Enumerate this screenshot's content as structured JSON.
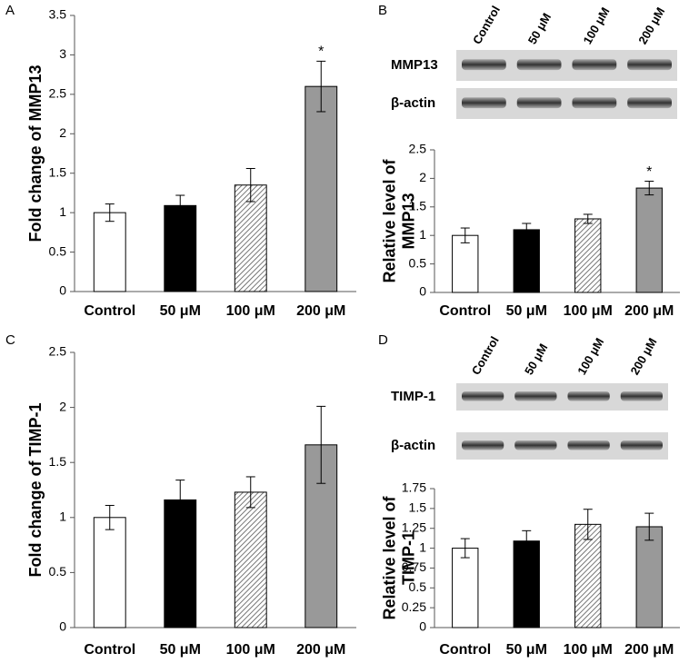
{
  "chart_data": [
    {
      "type": "bar",
      "panel": "A",
      "ylabel": [
        "Fold change of MMP13"
      ],
      "categories": [
        "Control",
        "50 μM",
        "100 μM",
        "200 μM"
      ],
      "values": [
        1,
        1.09,
        1.35,
        2.6
      ],
      "errors": [
        0.11,
        0.13,
        0.21,
        0.32
      ],
      "marks_above": [
        null,
        null,
        null,
        "*"
      ],
      "fills": [
        "#ffffff",
        "#000000",
        "hatch",
        "#999999"
      ],
      "ylim": [
        0,
        3.5
      ],
      "yticks": [
        0,
        0.5,
        1,
        1.5,
        2,
        2.5,
        3,
        3.5
      ]
    },
    {
      "type": "bar",
      "panel": "B",
      "ylabel": [
        "Relative level of",
        "MMP13"
      ],
      "blot": {
        "lanes": [
          "Control",
          "50 μM",
          "100 μM",
          "200 μM"
        ],
        "rows": [
          "MMP13",
          "β-actin"
        ]
      },
      "categories": [
        "Control",
        "50 μM",
        "100 μM",
        "200 μM"
      ],
      "values": [
        1,
        1.1,
        1.29,
        1.83
      ],
      "errors": [
        0.13,
        0.11,
        0.08,
        0.12
      ],
      "marks_above": [
        null,
        null,
        null,
        "*"
      ],
      "fills": [
        "#ffffff",
        "#000000",
        "hatch",
        "#999999"
      ],
      "ylim": [
        0,
        2.5
      ],
      "yticks": [
        0,
        0.5,
        1,
        1.5,
        2,
        2.5
      ]
    },
    {
      "type": "bar",
      "panel": "C",
      "ylabel": [
        "Fold change of TIMP-1"
      ],
      "categories": [
        "Control",
        "50 μM",
        "100 μM",
        "200 μM"
      ],
      "values": [
        1,
        1.16,
        1.23,
        1.66
      ],
      "errors": [
        0.11,
        0.18,
        0.14,
        0.35
      ],
      "fills": [
        "#ffffff",
        "#000000",
        "hatch",
        "#999999"
      ],
      "ylim": [
        0,
        2.5
      ],
      "yticks": [
        0,
        0.5,
        1,
        1.5,
        2,
        2.5
      ]
    },
    {
      "type": "bar",
      "panel": "D",
      "ylabel": [
        "Relative level of",
        "TIMP-1"
      ],
      "blot": {
        "lanes": [
          "Control",
          "50 μM",
          "100 μM",
          "200 μM"
        ],
        "rows": [
          "TIMP-1",
          "β-actin"
        ]
      },
      "categories": [
        "Control",
        "50 μM",
        "100 μM",
        "200 μM"
      ],
      "values": [
        1,
        1.09,
        1.3,
        1.27
      ],
      "errors": [
        0.12,
        0.13,
        0.19,
        0.17
      ],
      "fills": [
        "#ffffff",
        "#000000",
        "hatch",
        "#999999"
      ],
      "ylim": [
        0,
        1.75
      ],
      "yticks": [
        0,
        0.25,
        0.5,
        0.75,
        1,
        1.25,
        1.5,
        1.75
      ]
    }
  ]
}
